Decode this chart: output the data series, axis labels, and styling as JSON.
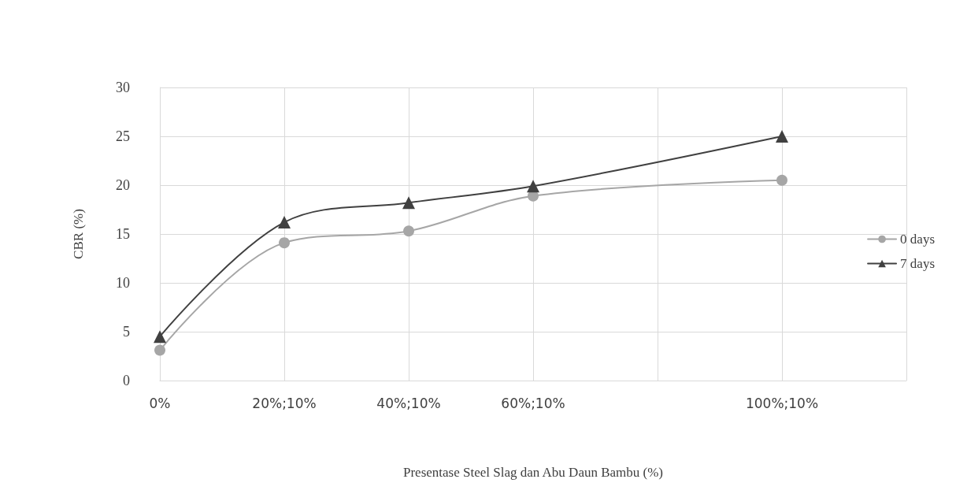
{
  "chart_data": {
    "type": "line",
    "xlabel": "Presentase Steel Slag dan Abu Daun Bambu (%)",
    "ylabel": "CBR (%)",
    "categories": [
      "0%",
      "20%;10%",
      "40%;10%",
      "60%;10%",
      null,
      "100%;10%",
      null
    ],
    "series": [
      {
        "name": "0 days",
        "color": "#a6a6a6",
        "marker": "circle",
        "values": [
          3.1,
          14.1,
          15.3,
          18.9,
          null,
          20.5,
          null
        ]
      },
      {
        "name": "7 days",
        "color": "#404040",
        "marker": "triangle",
        "values": [
          4.5,
          16.2,
          18.2,
          19.9,
          null,
          25.0,
          null
        ]
      }
    ],
    "ylim": [
      0,
      30
    ],
    "yticks": [
      0,
      5,
      10,
      15,
      20,
      25,
      30
    ],
    "grid": true,
    "legend": "right",
    "line_style": "solid"
  }
}
